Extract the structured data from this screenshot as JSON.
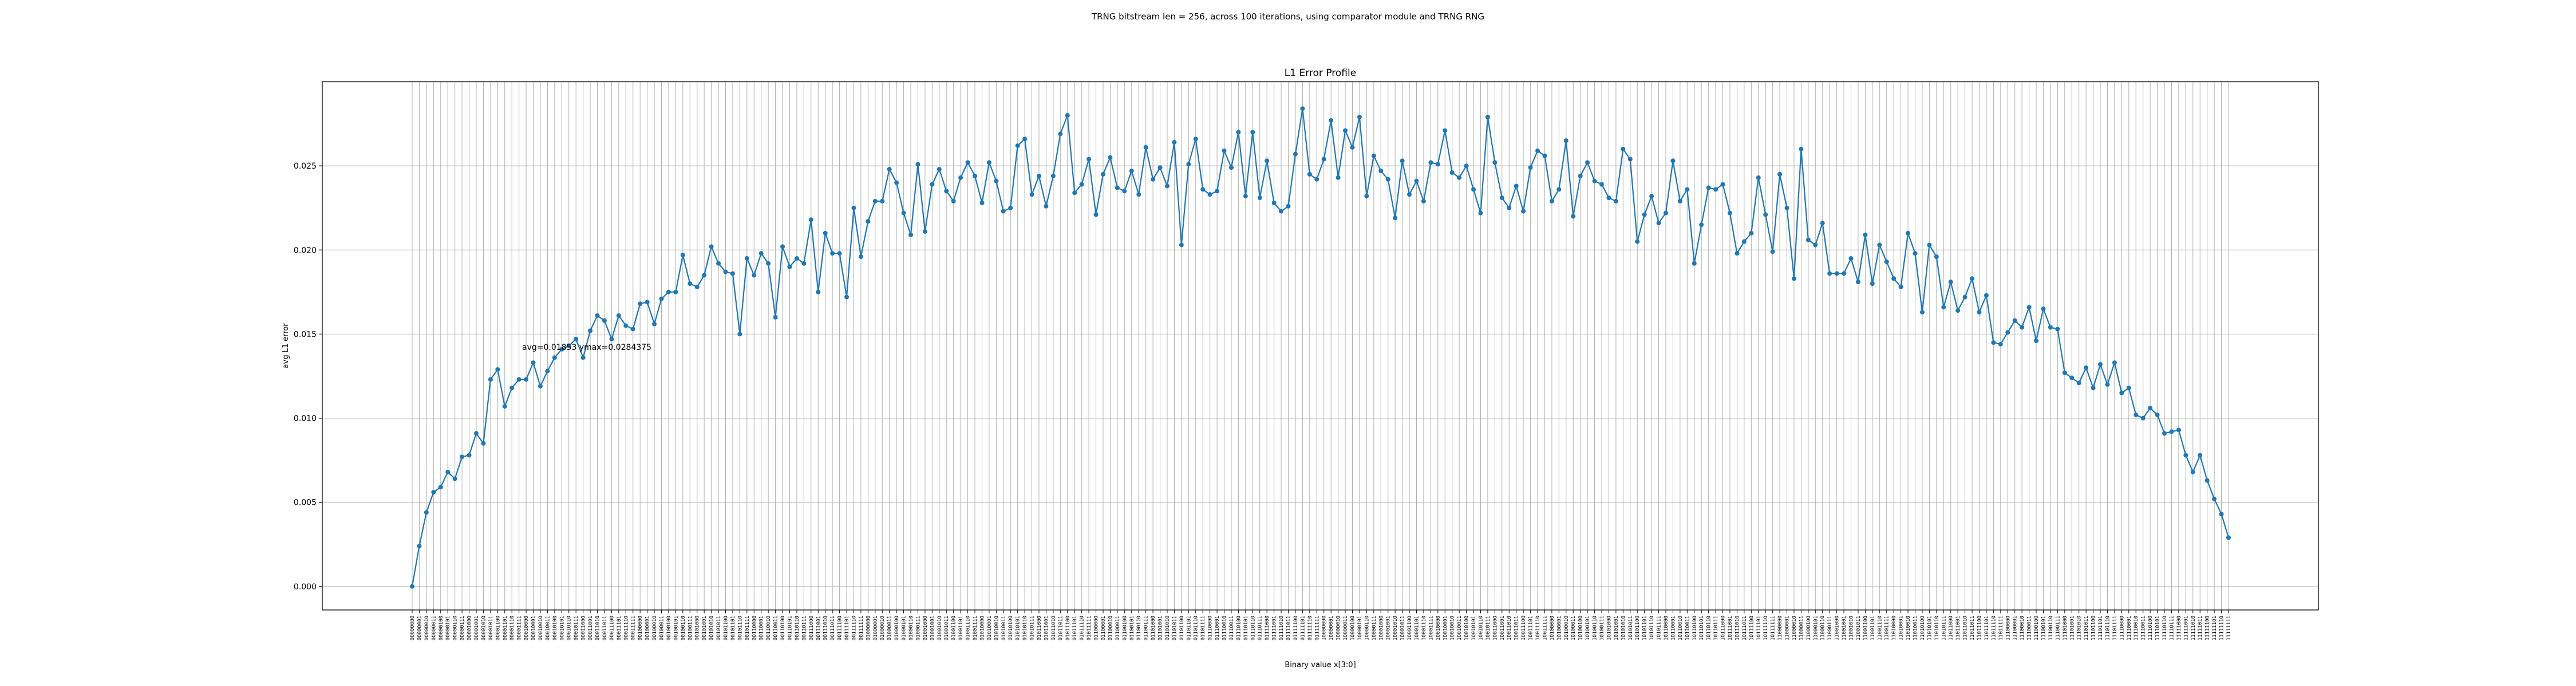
{
  "suptitle": "TRNG bitstream len = 256, across 100 iterations, using comparator module and TRNG RNG",
  "chart_data": {
    "type": "line",
    "title": "L1 Error Profile",
    "xlabel": "Binary value x[3:0]",
    "ylabel": "avg L1 error",
    "annotation": "avg=0.01853 ymax=0.0284375",
    "ylim": [
      -0.0014,
      0.03
    ],
    "yticks": [
      "0.000",
      "0.005",
      "0.010",
      "0.015",
      "0.020",
      "0.025"
    ],
    "ytick_values": [
      0.0,
      0.005,
      0.01,
      0.015,
      0.02,
      0.025
    ],
    "grid": true,
    "line_color": "#1f77b4",
    "marker": "circle",
    "x_count": 256,
    "x_tick_format": "8-bit binary, 00000000 … 11111111",
    "y": [
      0.0,
      0.0024,
      0.0044,
      0.0056,
      0.0059,
      0.0068,
      0.0064,
      0.0077,
      0.0078,
      0.0091,
      0.0085,
      0.0123,
      0.0129,
      0.0107,
      0.0118,
      0.0123,
      0.0123,
      0.0133,
      0.0119,
      0.0128,
      0.0136,
      0.0141,
      0.0143,
      0.0147,
      0.0136,
      0.0152,
      0.0161,
      0.0158,
      0.0147,
      0.0161,
      0.0155,
      0.0153,
      0.0168,
      0.0169,
      0.0156,
      0.0171,
      0.0175,
      0.0175,
      0.0197,
      0.018,
      0.0178,
      0.0185,
      0.0202,
      0.0192,
      0.0187,
      0.0186,
      0.015,
      0.0195,
      0.0185,
      0.0198,
      0.0192,
      0.016,
      0.0202,
      0.019,
      0.0195,
      0.0192,
      0.0218,
      0.0175,
      0.021,
      0.0198,
      0.0198,
      0.0172,
      0.0225,
      0.0196,
      0.0217,
      0.0229,
      0.0229,
      0.0248,
      0.024,
      0.0222,
      0.0209,
      0.0251,
      0.0211,
      0.0239,
      0.0248,
      0.0235,
      0.0229,
      0.0243,
      0.0252,
      0.0244,
      0.0228,
      0.0252,
      0.0241,
      0.0223,
      0.0225,
      0.0262,
      0.0266,
      0.0233,
      0.0244,
      0.0226,
      0.0244,
      0.0269,
      0.028,
      0.0234,
      0.0239,
      0.0254,
      0.0221,
      0.0245,
      0.0255,
      0.0237,
      0.0235,
      0.0247,
      0.0233,
      0.0261,
      0.0242,
      0.0249,
      0.0238,
      0.0264,
      0.0203,
      0.0251,
      0.0266,
      0.0236,
      0.0233,
      0.0235,
      0.0259,
      0.0249,
      0.027,
      0.0232,
      0.027,
      0.0231,
      0.0253,
      0.0228,
      0.0223,
      0.0226,
      0.0257,
      0.0284,
      0.0245,
      0.0242,
      0.0254,
      0.0277,
      0.0243,
      0.0271,
      0.0261,
      0.0279,
      0.0232,
      0.0256,
      0.0247,
      0.0242,
      0.0219,
      0.0253,
      0.0233,
      0.0241,
      0.0229,
      0.0252,
      0.0251,
      0.0271,
      0.0246,
      0.0243,
      0.025,
      0.0236,
      0.0222,
      0.0279,
      0.0252,
      0.0231,
      0.0225,
      0.0238,
      0.0223,
      0.0249,
      0.0259,
      0.0256,
      0.0229,
      0.0236,
      0.0265,
      0.022,
      0.0244,
      0.0252,
      0.0241,
      0.0239,
      0.0231,
      0.0229,
      0.026,
      0.0254,
      0.0205,
      0.0221,
      0.0232,
      0.0216,
      0.0222,
      0.0253,
      0.0229,
      0.0236,
      0.0192,
      0.0215,
      0.0237,
      0.0236,
      0.0239,
      0.0222,
      0.0198,
      0.0205,
      0.021,
      0.0243,
      0.0221,
      0.0199,
      0.0245,
      0.0225,
      0.0183,
      0.026,
      0.0206,
      0.0203,
      0.0216,
      0.0186,
      0.0186,
      0.0186,
      0.0195,
      0.0181,
      0.0209,
      0.018,
      0.0203,
      0.0193,
      0.0183,
      0.0178,
      0.021,
      0.0198,
      0.0163,
      0.0203,
      0.0196,
      0.0166,
      0.0181,
      0.0164,
      0.0172,
      0.0183,
      0.0163,
      0.0173,
      0.0145,
      0.0144,
      0.0151,
      0.0158,
      0.0154,
      0.0166,
      0.0146,
      0.0165,
      0.0154,
      0.0153,
      0.0127,
      0.0124,
      0.0121,
      0.013,
      0.0118,
      0.0132,
      0.012,
      0.0133,
      0.0115,
      0.0118,
      0.0102,
      0.01,
      0.0106,
      0.0102,
      0.0091,
      0.0092,
      0.0093,
      0.0078,
      0.0068,
      0.0078,
      0.0063,
      0.0052,
      0.0043,
      0.0029
    ]
  }
}
